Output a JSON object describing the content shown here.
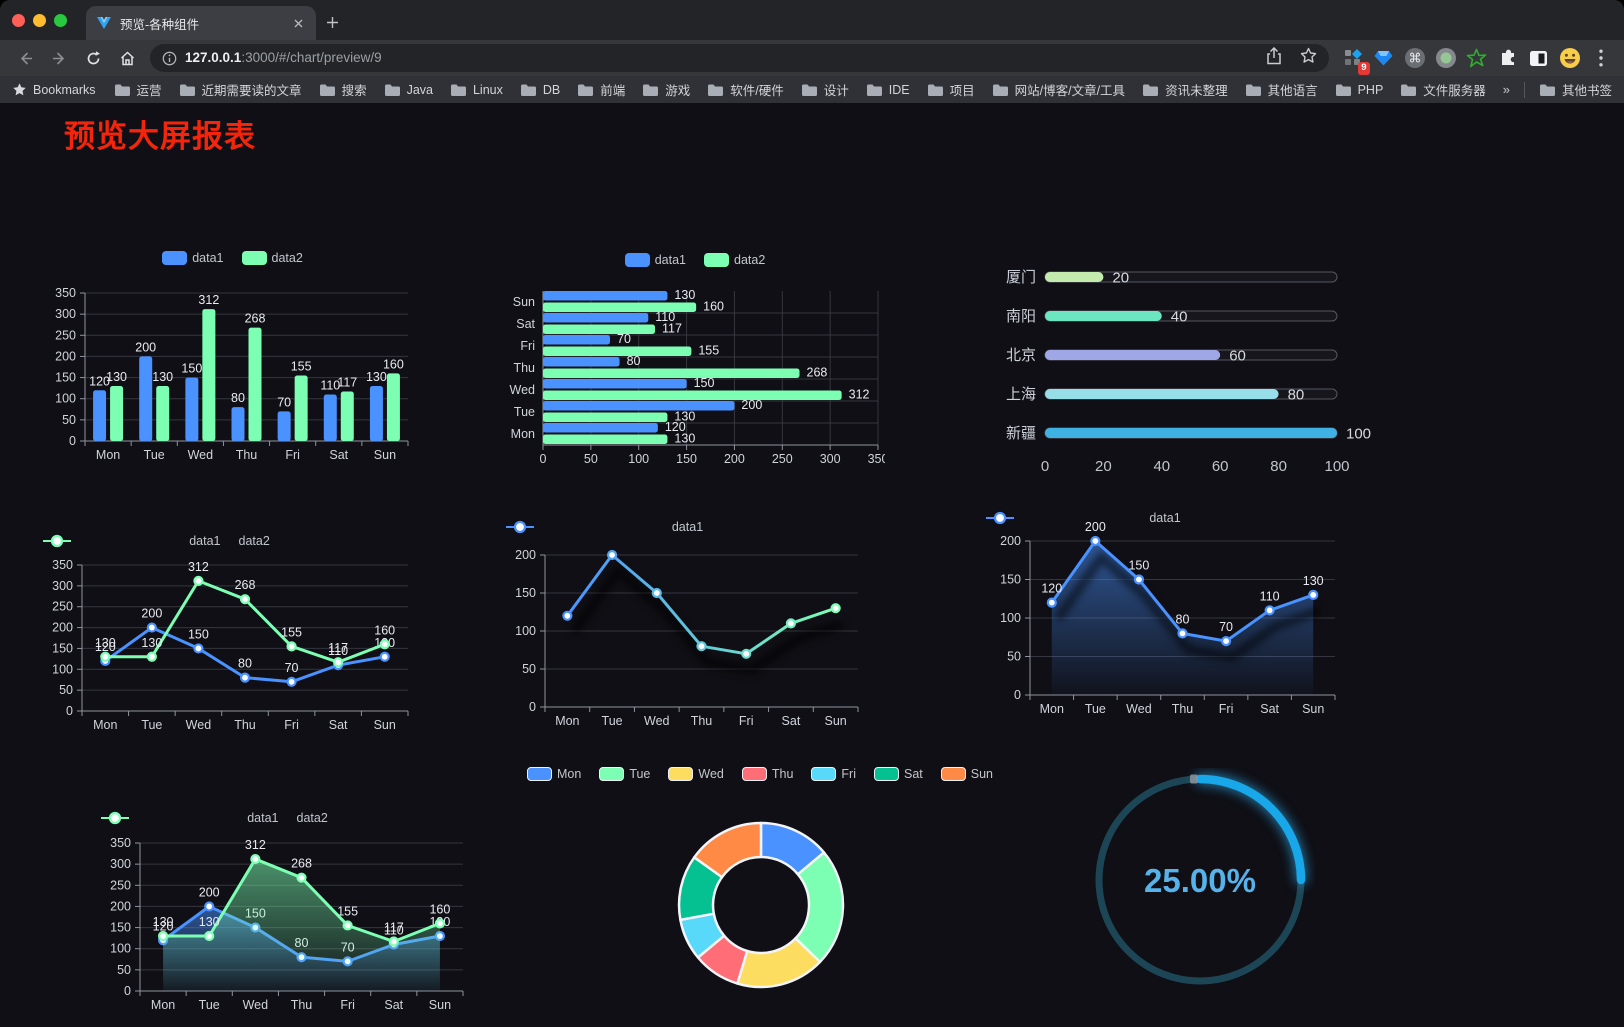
{
  "browser": {
    "tab_title": "预览-各种组件",
    "url_host": "127.0.0.1",
    "url_rest": ":3000/#/chart/preview/9",
    "bookmarks_label": "Bookmarks",
    "bookmarks": [
      "运营",
      "近期需要读的文章",
      "搜索",
      "Java",
      "Linux",
      "DB",
      "前端",
      "游戏",
      "软件/硬件",
      "设计",
      "IDE",
      "项目",
      "网站/博客/文章/工具",
      "资讯未整理",
      "其他语言",
      "PHP",
      "文件服务器"
    ],
    "overflow_chevron": "»",
    "other_bookmarks_label": "其他书签",
    "extension_badge": "9",
    "icons": [
      "back-icon",
      "forward-icon",
      "reload-icon",
      "home-icon",
      "info-icon",
      "share-icon",
      "star-icon",
      "extension-grid-icon",
      "gem-icon",
      "command-icon",
      "record-icon",
      "green-star-icon",
      "puzzle-icon",
      "contrast-icon",
      "emoji-icon",
      "menu-dots-icon",
      "folder-icon"
    ]
  },
  "page": {
    "title": "预览大屏报表",
    "title_color": "#f5250b"
  },
  "chart_data": [
    {
      "id": "grouped-bar",
      "type": "bar",
      "categories": [
        "Mon",
        "Tue",
        "Wed",
        "Thu",
        "Fri",
        "Sat",
        "Sun"
      ],
      "series": [
        {
          "name": "data1",
          "color": "#4992ff",
          "values": [
            120,
            200,
            150,
            80,
            70,
            110,
            130
          ]
        },
        {
          "name": "data2",
          "color": "#7cffb2",
          "values": [
            130,
            130,
            312,
            268,
            155,
            117,
            160
          ]
        }
      ],
      "ylim": [
        0,
        350
      ],
      "ystep": 50,
      "legend_position": "top",
      "grid": true
    },
    {
      "id": "grouped-hbar",
      "type": "hbar",
      "categories": [
        "Sun",
        "Sat",
        "Fri",
        "Thu",
        "Wed",
        "Tue",
        "Mon"
      ],
      "series": [
        {
          "name": "data1",
          "color": "#4992ff",
          "values": [
            130,
            110,
            70,
            80,
            150,
            200,
            120
          ]
        },
        {
          "name": "data2",
          "color": "#7cffb2",
          "values": [
            160,
            117,
            155,
            268,
            312,
            130,
            130
          ]
        }
      ],
      "xlim": [
        0,
        350
      ],
      "xstep": 50,
      "legend_position": "top",
      "grid": true
    },
    {
      "id": "progress",
      "type": "progress-bars",
      "items": [
        {
          "label": "厦门",
          "value": 20,
          "color": "#c4ebad"
        },
        {
          "label": "南阳",
          "value": 40,
          "color": "#6be6c1"
        },
        {
          "label": "北京",
          "value": 60,
          "color": "#a0a7e6"
        },
        {
          "label": "上海",
          "value": 80,
          "color": "#96dee8"
        },
        {
          "label": "新疆",
          "value": 100,
          "color": "#3fb1e3"
        }
      ],
      "xlim": [
        0,
        100
      ],
      "xticks": [
        0,
        20,
        40,
        60,
        80,
        100
      ]
    },
    {
      "id": "line-basic",
      "type": "line",
      "categories": [
        "Mon",
        "Tue",
        "Wed",
        "Thu",
        "Fri",
        "Sat",
        "Sun"
      ],
      "series": [
        {
          "name": "data1",
          "color": "#4992ff",
          "values": [
            120,
            200,
            150,
            80,
            70,
            110,
            130
          ]
        },
        {
          "name": "data2",
          "color": "#7cffb2",
          "values": [
            130,
            130,
            312,
            268,
            155,
            117,
            160
          ]
        }
      ],
      "ylim": [
        0,
        350
      ],
      "ystep": 50,
      "show_labels": true,
      "legend_position": "top",
      "grid": true
    },
    {
      "id": "line-gradient",
      "type": "line",
      "categories": [
        "Mon",
        "Tue",
        "Wed",
        "Thu",
        "Fri",
        "Sat",
        "Sun"
      ],
      "series": [
        {
          "name": "data1",
          "color": "#4992ff",
          "gradient": [
            "#4992ff",
            "#7cffb2"
          ],
          "values": [
            120,
            200,
            150,
            80,
            70,
            110,
            130
          ],
          "shadow": true
        }
      ],
      "ylim": [
        0,
        200
      ],
      "ystep": 50,
      "show_labels": false,
      "legend_position": "top",
      "grid": true
    },
    {
      "id": "area-single",
      "type": "line",
      "categories": [
        "Mon",
        "Tue",
        "Wed",
        "Thu",
        "Fri",
        "Sat",
        "Sun"
      ],
      "series": [
        {
          "name": "data1",
          "color": "#4992ff",
          "values": [
            120,
            200,
            150,
            80,
            70,
            110,
            130
          ],
          "area": true,
          "shadow": true
        }
      ],
      "ylim": [
        0,
        200
      ],
      "ystep": 50,
      "show_labels": true,
      "legend_position": "top",
      "grid": true
    },
    {
      "id": "area-double",
      "type": "line",
      "categories": [
        "Mon",
        "Tue",
        "Wed",
        "Thu",
        "Fri",
        "Sat",
        "Sun"
      ],
      "series": [
        {
          "name": "data1",
          "color": "#4992ff",
          "values": [
            120,
            200,
            150,
            80,
            70,
            110,
            130
          ],
          "area": true
        },
        {
          "name": "data2",
          "color": "#7cffb2",
          "values": [
            130,
            130,
            312,
            268,
            155,
            117,
            160
          ],
          "area": true
        }
      ],
      "ylim": [
        0,
        350
      ],
      "ystep": 50,
      "show_labels": true,
      "legend_position": "top",
      "grid": true
    },
    {
      "id": "donut",
      "type": "pie",
      "categories": [
        "Mon",
        "Tue",
        "Wed",
        "Thu",
        "Fri",
        "Sat",
        "Sun"
      ],
      "values": [
        120,
        200,
        150,
        80,
        70,
        110,
        130
      ],
      "colors": [
        "#4992ff",
        "#7cffb2",
        "#fddd60",
        "#ff6e76",
        "#58d9f9",
        "#05c091",
        "#ff8a45"
      ],
      "legend_position": "top",
      "border_color": "#f2f4f7"
    },
    {
      "id": "gauge",
      "type": "gauge",
      "value": 25,
      "label": "25.00%",
      "color": "#18a7e8",
      "track_color": "#1c4656",
      "text_color": "#57b2ea"
    }
  ]
}
